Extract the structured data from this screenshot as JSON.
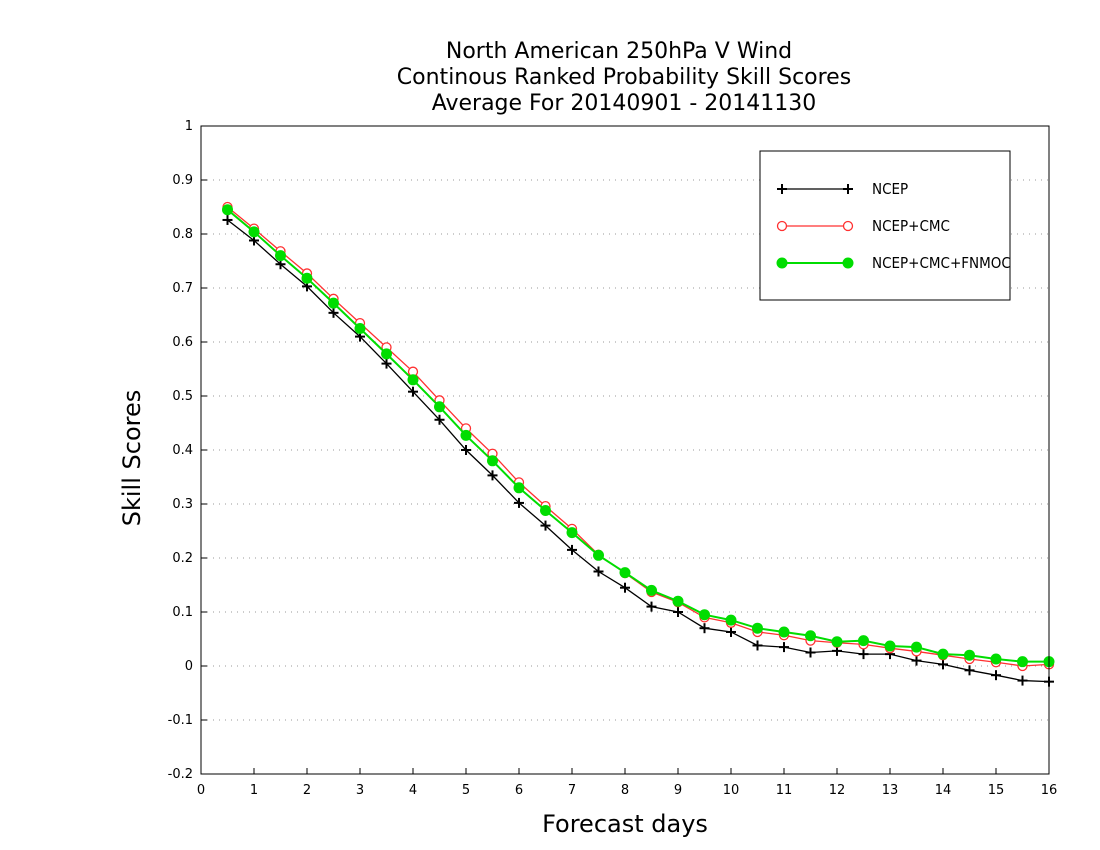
{
  "chart_data": {
    "type": "line",
    "title": [
      "North American 250hPa V Wind",
      "Continous Ranked Probability Skill Scores",
      "Average For 20140901 - 20141130"
    ],
    "xlabel": "Forecast days",
    "ylabel": "Skill Scores",
    "xlim": [
      0,
      16
    ],
    "ylim": [
      -0.2,
      1
    ],
    "xticks": [
      "0",
      "1",
      "2",
      "3",
      "4",
      "5",
      "6",
      "7",
      "8",
      "9",
      "10",
      "11",
      "12",
      "13",
      "14",
      "15",
      "16"
    ],
    "yticks": [
      "-0.2",
      "-0.1",
      "0",
      "0.1",
      "0.2",
      "0.3",
      "0.4",
      "0.5",
      "0.6",
      "0.7",
      "0.8",
      "0.9",
      "1"
    ],
    "grid": "horizontal dotted",
    "legend_position": "top-right",
    "x": [
      0.5,
      1,
      1.5,
      2,
      2.5,
      3,
      3.5,
      4,
      4.5,
      5,
      5.5,
      6,
      6.5,
      7,
      7.5,
      8,
      8.5,
      9,
      9.5,
      10,
      10.5,
      11,
      11.5,
      12,
      12.5,
      13,
      13.5,
      14,
      14.5,
      15,
      15.5,
      16
    ],
    "series": [
      {
        "name": "NCEP",
        "color": "#000000",
        "marker": "plus",
        "values": [
          0.826,
          0.788,
          0.744,
          0.703,
          0.654,
          0.61,
          0.56,
          0.508,
          0.456,
          0.4,
          0.353,
          0.302,
          0.26,
          0.215,
          0.175,
          0.145,
          0.11,
          0.1,
          0.07,
          0.063,
          0.038,
          0.035,
          0.025,
          0.028,
          0.022,
          0.022,
          0.01,
          0.003,
          -0.008,
          -0.017,
          -0.027,
          -0.029
        ]
      },
      {
        "name": "NCEP+CMC",
        "color": "#ff3030",
        "marker": "open-circle",
        "values": [
          0.85,
          0.81,
          0.768,
          0.727,
          0.68,
          0.635,
          0.59,
          0.545,
          0.492,
          0.44,
          0.393,
          0.34,
          0.296,
          0.254,
          0.206,
          0.172,
          0.137,
          0.118,
          0.09,
          0.08,
          0.063,
          0.057,
          0.047,
          0.043,
          0.04,
          0.033,
          0.027,
          0.02,
          0.013,
          0.007,
          0.0,
          0.003
        ]
      },
      {
        "name": "NCEP+CMC+FNMOC",
        "color": "#00dd00",
        "marker": "filled-circle",
        "values": [
          0.845,
          0.804,
          0.76,
          0.718,
          0.672,
          0.625,
          0.578,
          0.53,
          0.48,
          0.427,
          0.38,
          0.33,
          0.288,
          0.247,
          0.205,
          0.173,
          0.14,
          0.12,
          0.095,
          0.085,
          0.07,
          0.063,
          0.056,
          0.045,
          0.047,
          0.037,
          0.035,
          0.022,
          0.02,
          0.013,
          0.008,
          0.008
        ]
      }
    ]
  }
}
